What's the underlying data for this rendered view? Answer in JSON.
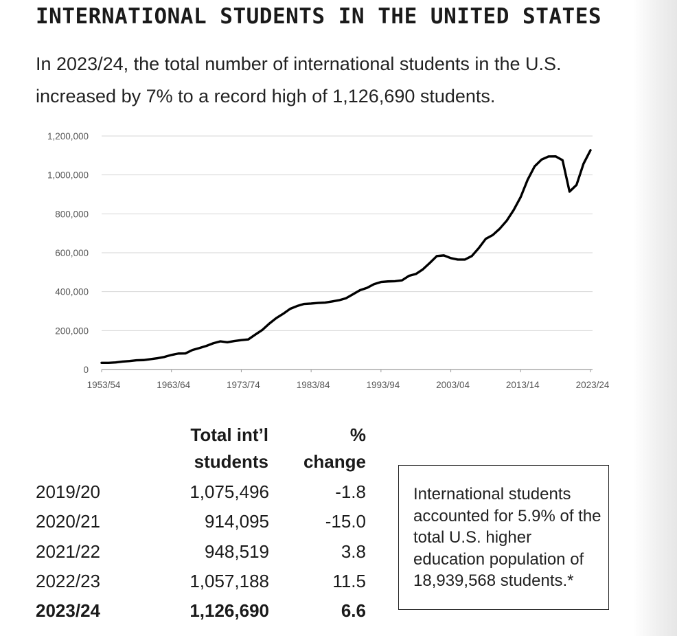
{
  "title": "INTERNATIONAL STUDENTS IN THE UNITED STATES",
  "subtitle": "In 2023/24, the total number of international students in the U.S. increased by 7% to a record high of 1,126,690 students.",
  "chart_data": {
    "type": "line",
    "title": "",
    "xlabel": "",
    "ylabel": "",
    "ylim": [
      0,
      1200000
    ],
    "grid": true,
    "yticks": [
      "0",
      "200,000",
      "400,000",
      "600,000",
      "800,000",
      "1,000,000",
      "1,200,000"
    ],
    "ytick_values": [
      0,
      200000,
      400000,
      600000,
      800000,
      1000000,
      1200000
    ],
    "xticks": [
      "1953/54",
      "1963/64",
      "1973/74",
      "1983/84",
      "1993/94",
      "2003/04",
      "2013/14",
      "2023/24"
    ],
    "series": [
      {
        "name": "",
        "color": "#000000",
        "x": [
          "1953/54",
          "1954/55",
          "1955/56",
          "1956/57",
          "1957/58",
          "1958/59",
          "1959/60",
          "1960/61",
          "1961/62",
          "1962/63",
          "1963/64",
          "1964/65",
          "1965/66",
          "1966/67",
          "1967/68",
          "1968/69",
          "1969/70",
          "1970/71",
          "1971/72",
          "1972/73",
          "1973/74",
          "1974/75",
          "1975/76",
          "1976/77",
          "1977/78",
          "1978/79",
          "1979/80",
          "1980/81",
          "1981/82",
          "1982/83",
          "1983/84",
          "1984/85",
          "1985/86",
          "1986/87",
          "1987/88",
          "1988/89",
          "1989/90",
          "1990/91",
          "1991/92",
          "1992/93",
          "1993/94",
          "1994/95",
          "1995/96",
          "1996/97",
          "1997/98",
          "1998/99",
          "1999/00",
          "2000/01",
          "2001/02",
          "2002/03",
          "2003/04",
          "2004/05",
          "2005/06",
          "2006/07",
          "2007/08",
          "2008/09",
          "2009/10",
          "2010/11",
          "2011/12",
          "2012/13",
          "2013/14",
          "2014/15",
          "2015/16",
          "2016/17",
          "2017/18",
          "2018/19",
          "2019/20",
          "2020/21",
          "2021/22",
          "2022/23",
          "2023/24"
        ],
        "values": [
          34232,
          34232,
          36494,
          40666,
          43391,
          47245,
          48486,
          53107,
          58086,
          64705,
          74814,
          82045,
          82709,
          100262,
          110315,
          121362,
          134959,
          144708,
          140126,
          146097,
          151066,
          154580,
          179344,
          203068,
          235509,
          263938,
          286343,
          311882,
          326299,
          336985,
          338894,
          342113,
          343777,
          349609,
          356187,
          366354,
          386851,
          407529,
          419585,
          438618,
          449749,
          452653,
          453787,
          457984,
          481280,
          490933,
          514723,
          547867,
          582996,
          586323,
          572509,
          565039,
          564766,
          582984,
          623805,
          671616,
          690923,
          723277,
          764495,
          819644,
          886052,
          974926,
          1043839,
          1078822,
          1094792,
          1095299,
          1075496,
          914095,
          948519,
          1057188,
          1126690
        ]
      }
    ]
  },
  "table": {
    "header_total_line1": "Total int’l",
    "header_total_line2": "students",
    "header_pct_line1": "%",
    "header_pct_line2": "change",
    "rows": [
      {
        "year": "2019/20",
        "total": "1,075,496",
        "pct": "-1.8"
      },
      {
        "year": "2020/21",
        "total": "914,095",
        "pct": "-15.0"
      },
      {
        "year": "2021/22",
        "total": "948,519",
        "pct": "3.8"
      },
      {
        "year": "2022/23",
        "total": "1,057,188",
        "pct": "11.5"
      },
      {
        "year": "2023/24",
        "total": "1,126,690",
        "pct": "6.6"
      }
    ]
  },
  "note": "International students accounted for 5.9% of the total U.S. higher education population of 18,939,568 students.*"
}
